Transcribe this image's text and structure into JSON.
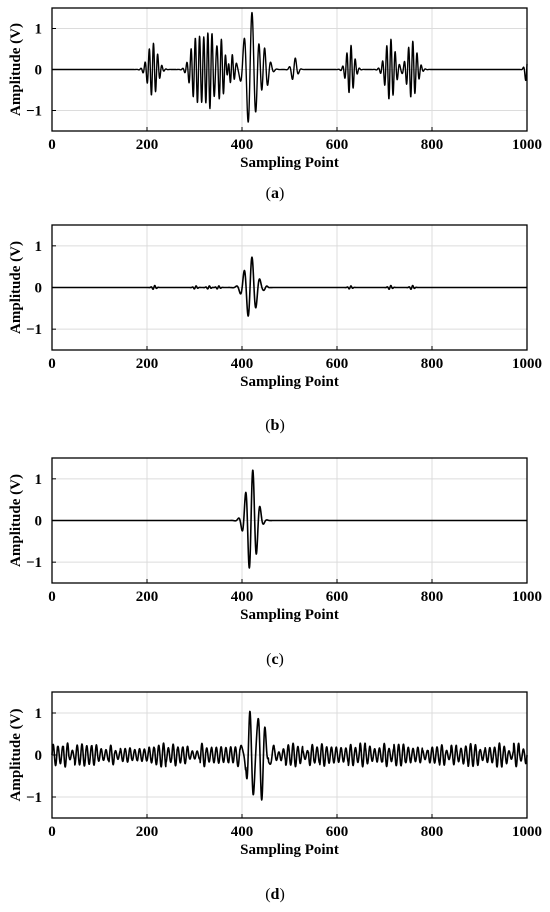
{
  "chart_data": [
    {
      "type": "line",
      "panel": "(a)",
      "panel_letter": "a",
      "xlabel": "Sampling Point",
      "ylabel": "Amplitude (V)",
      "xlim": [
        0,
        1000
      ],
      "ylim": [
        -1.5,
        1.5
      ],
      "xticks": [
        0,
        200,
        400,
        600,
        800,
        1000
      ],
      "yticks": [
        -1,
        0,
        1
      ],
      "grid": true,
      "line_color": "#000000",
      "description": "multiple impulsive bursts",
      "series": [
        {
          "bursts": [
            {
              "x": 212,
              "amp": 0.65,
              "freq": 0.45,
              "width": 10
            },
            {
              "x": 300,
              "amp": 0.62,
              "freq": 0.45,
              "width": 10
            },
            {
              "x": 318,
              "amp": 0.6,
              "freq": 0.45,
              "width": 10
            },
            {
              "x": 335,
              "amp": 0.8,
              "freq": 0.45,
              "width": 8
            },
            {
              "x": 355,
              "amp": 0.75,
              "freq": 0.45,
              "width": 9
            },
            {
              "x": 378,
              "amp": 0.4,
              "freq": 0.45,
              "width": 6
            },
            {
              "x": 418,
              "amp": 1.4,
              "freq": 0.24,
              "width": 12
            },
            {
              "x": 445,
              "amp": 0.6,
              "freq": 0.3,
              "width": 10
            },
            {
              "x": 510,
              "amp": 0.3,
              "freq": 0.3,
              "width": 6
            },
            {
              "x": 628,
              "amp": 0.6,
              "freq": 0.45,
              "width": 8
            },
            {
              "x": 712,
              "amp": 0.75,
              "freq": 0.45,
              "width": 10
            },
            {
              "x": 758,
              "amp": 0.7,
              "freq": 0.45,
              "width": 10
            },
            {
              "x": 1000,
              "amp": 0.35,
              "freq": 0.4,
              "width": 4
            }
          ],
          "noise": 0.0
        }
      ]
    },
    {
      "type": "line",
      "panel": "(b)",
      "panel_letter": "b",
      "xlabel": "Sampling Point",
      "ylabel": "Amplitude (V)",
      "xlim": [
        0,
        1000
      ],
      "ylim": [
        -1.5,
        1.5
      ],
      "xticks": [
        0,
        200,
        400,
        600,
        800,
        1000
      ],
      "yticks": [
        -1,
        0,
        1
      ],
      "grid": true,
      "line_color": "#000000",
      "series": [
        {
          "bursts": [
            {
              "x": 215,
              "amp": 0.05,
              "freq": 0.5,
              "width": 4
            },
            {
              "x": 302,
              "amp": 0.04,
              "freq": 0.5,
              "width": 4
            },
            {
              "x": 330,
              "amp": 0.04,
              "freq": 0.5,
              "width": 4
            },
            {
              "x": 350,
              "amp": 0.04,
              "freq": 0.5,
              "width": 4
            },
            {
              "x": 418,
              "amp": 0.75,
              "freq": 0.24,
              "width": 12
            },
            {
              "x": 450,
              "amp": 0.03,
              "freq": 0.3,
              "width": 4
            },
            {
              "x": 628,
              "amp": 0.04,
              "freq": 0.5,
              "width": 4
            },
            {
              "x": 712,
              "amp": 0.05,
              "freq": 0.5,
              "width": 4
            },
            {
              "x": 758,
              "amp": 0.05,
              "freq": 0.5,
              "width": 4
            }
          ],
          "noise": 0.0
        }
      ]
    },
    {
      "type": "line",
      "panel": "(c)",
      "panel_letter": "c",
      "xlabel": "Sampling Point",
      "ylabel": "Amplitude (V)",
      "xlim": [
        0,
        1000
      ],
      "ylim": [
        -1.5,
        1.5
      ],
      "xticks": [
        0,
        200,
        400,
        600,
        800,
        1000
      ],
      "yticks": [
        -1,
        0,
        1
      ],
      "grid": true,
      "line_color": "#000000",
      "series": [
        {
          "bursts": [
            {
              "x": 420,
              "amp": 1.25,
              "freq": 0.26,
              "width": 11
            }
          ],
          "noise": 0.0
        }
      ]
    },
    {
      "type": "line",
      "panel": "(d)",
      "panel_letter": "d",
      "xlabel": "Sampling Point",
      "ylabel": "Amplitude (V)",
      "xlim": [
        0,
        1000
      ],
      "ylim": [
        -1.5,
        1.5
      ],
      "xticks": [
        0,
        200,
        400,
        600,
        800,
        1000
      ],
      "yticks": [
        -1,
        0,
        1
      ],
      "grid": true,
      "line_color": "#000000",
      "series": [
        {
          "bursts": [
            {
              "x": 430,
              "amp": 1.0,
              "freq": 0.24,
              "width": 18
            }
          ],
          "noise": 0.22,
          "noise_freq": 0.22
        }
      ]
    }
  ]
}
